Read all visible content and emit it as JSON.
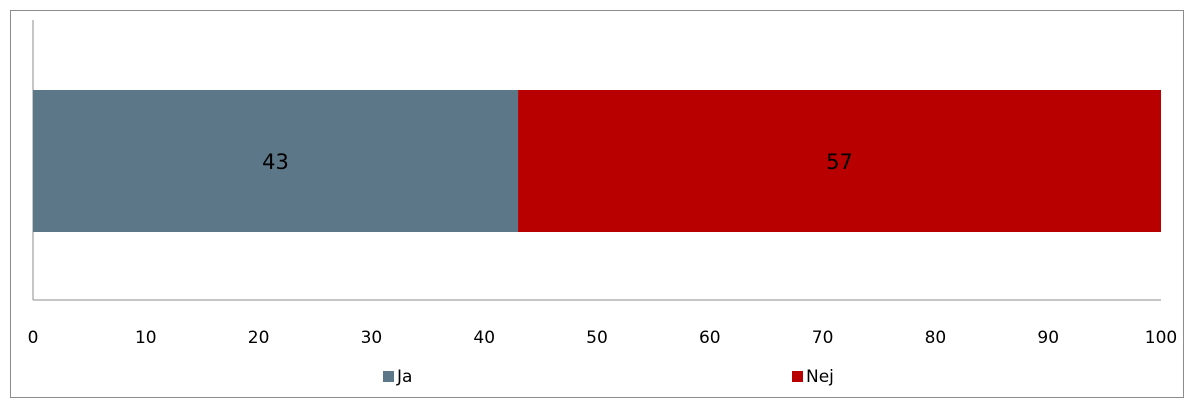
{
  "chart_data": {
    "type": "bar",
    "orientation": "horizontal",
    "stacked": true,
    "categories": [
      ""
    ],
    "series": [
      {
        "name": "Ja",
        "values": [
          43
        ],
        "color": "#5b7788"
      },
      {
        "name": "Nej",
        "values": [
          57
        ],
        "color": "#b80000"
      }
    ],
    "xlim": [
      0,
      100
    ],
    "xticks": [
      "0",
      "10",
      "20",
      "30",
      "40",
      "50",
      "60",
      "70",
      "80",
      "90",
      "100"
    ],
    "data_labels": [
      "43",
      "57"
    ],
    "grid": false,
    "legend": "bottom"
  }
}
